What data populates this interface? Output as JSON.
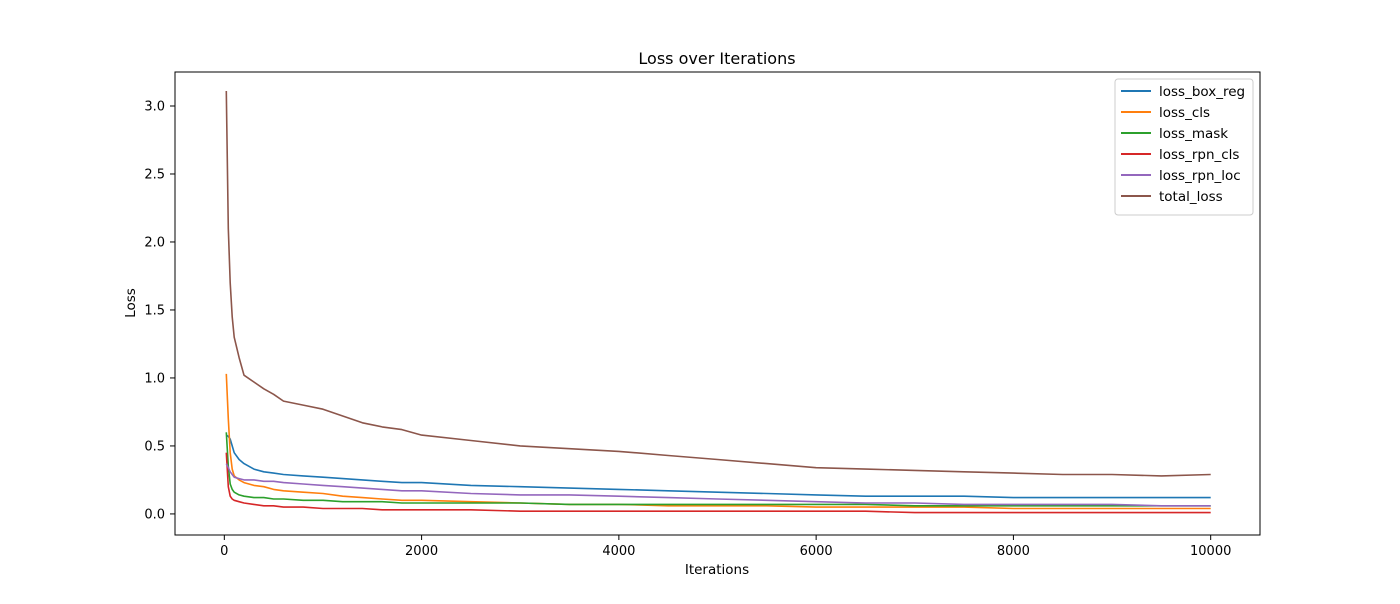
{
  "chart_data": {
    "type": "line",
    "title": "Loss over Iterations",
    "xlabel": "Iterations",
    "ylabel": "Loss",
    "xlim": [
      -500,
      10500
    ],
    "ylim": [
      -0.155,
      3.25
    ],
    "xticks": [
      0,
      2000,
      4000,
      6000,
      8000,
      10000
    ],
    "xtick_labels": [
      "0",
      "2000",
      "4000",
      "6000",
      "8000",
      "10000"
    ],
    "yticks": [
      0.0,
      0.5,
      1.0,
      1.5,
      2.0,
      2.5,
      3.0
    ],
    "ytick_labels": [
      "0.0",
      "0.5",
      "1.0",
      "1.5",
      "2.0",
      "2.5",
      "3.0"
    ],
    "grid": false,
    "legend_position": "upper right",
    "x": [
      20,
      40,
      60,
      80,
      100,
      150,
      200,
      300,
      400,
      500,
      600,
      800,
      1000,
      1200,
      1400,
      1600,
      1800,
      2000,
      2500,
      3000,
      3500,
      4000,
      4500,
      5000,
      5500,
      6000,
      6500,
      7000,
      7500,
      8000,
      8500,
      9000,
      9500,
      10000
    ],
    "series": [
      {
        "name": "loss_box_reg",
        "color": "#1f77b4",
        "values": [
          0.58,
          0.57,
          0.55,
          0.5,
          0.45,
          0.4,
          0.37,
          0.33,
          0.31,
          0.3,
          0.29,
          0.28,
          0.27,
          0.26,
          0.25,
          0.24,
          0.23,
          0.23,
          0.21,
          0.2,
          0.19,
          0.18,
          0.17,
          0.16,
          0.15,
          0.14,
          0.13,
          0.13,
          0.13,
          0.12,
          0.12,
          0.12,
          0.12,
          0.12
        ]
      },
      {
        "name": "loss_cls",
        "color": "#ff7f0e",
        "values": [
          1.03,
          0.7,
          0.45,
          0.33,
          0.28,
          0.25,
          0.23,
          0.21,
          0.2,
          0.18,
          0.17,
          0.16,
          0.15,
          0.13,
          0.12,
          0.11,
          0.1,
          0.1,
          0.09,
          0.08,
          0.07,
          0.07,
          0.06,
          0.06,
          0.06,
          0.05,
          0.05,
          0.05,
          0.05,
          0.04,
          0.04,
          0.04,
          0.04,
          0.04
        ]
      },
      {
        "name": "loss_mask",
        "color": "#2ca02c",
        "values": [
          0.6,
          0.35,
          0.22,
          0.18,
          0.16,
          0.14,
          0.13,
          0.12,
          0.12,
          0.11,
          0.11,
          0.1,
          0.1,
          0.09,
          0.09,
          0.09,
          0.08,
          0.08,
          0.08,
          0.08,
          0.07,
          0.07,
          0.07,
          0.07,
          0.07,
          0.07,
          0.07,
          0.06,
          0.06,
          0.06,
          0.06,
          0.06,
          0.06,
          0.06
        ]
      },
      {
        "name": "loss_rpn_cls",
        "color": "#d62728",
        "values": [
          0.45,
          0.2,
          0.13,
          0.11,
          0.1,
          0.09,
          0.08,
          0.07,
          0.06,
          0.06,
          0.05,
          0.05,
          0.04,
          0.04,
          0.04,
          0.03,
          0.03,
          0.03,
          0.03,
          0.02,
          0.02,
          0.02,
          0.02,
          0.02,
          0.02,
          0.02,
          0.02,
          0.01,
          0.01,
          0.01,
          0.01,
          0.01,
          0.01,
          0.01
        ]
      },
      {
        "name": "loss_rpn_loc",
        "color": "#9467bd",
        "values": [
          0.37,
          0.34,
          0.31,
          0.29,
          0.27,
          0.26,
          0.25,
          0.25,
          0.24,
          0.24,
          0.23,
          0.22,
          0.21,
          0.2,
          0.19,
          0.18,
          0.17,
          0.17,
          0.15,
          0.14,
          0.14,
          0.13,
          0.12,
          0.11,
          0.1,
          0.09,
          0.08,
          0.08,
          0.07,
          0.07,
          0.07,
          0.07,
          0.06,
          0.06
        ]
      },
      {
        "name": "total_loss",
        "color": "#8c564b",
        "values": [
          3.11,
          2.1,
          1.7,
          1.45,
          1.3,
          1.15,
          1.02,
          0.97,
          0.92,
          0.88,
          0.83,
          0.8,
          0.77,
          0.72,
          0.67,
          0.64,
          0.62,
          0.58,
          0.54,
          0.5,
          0.48,
          0.46,
          0.43,
          0.4,
          0.37,
          0.34,
          0.33,
          0.32,
          0.31,
          0.3,
          0.29,
          0.29,
          0.28,
          0.29
        ]
      }
    ]
  }
}
